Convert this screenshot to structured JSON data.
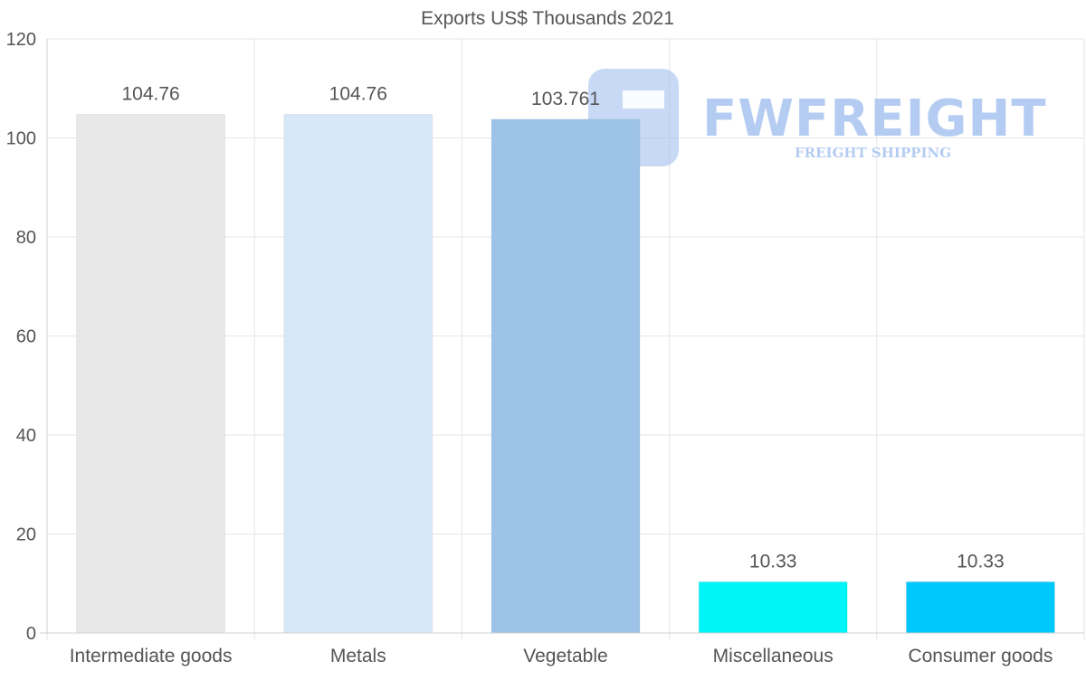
{
  "chart_data": {
    "type": "bar",
    "title": "Exports US$ Thousands 2021",
    "categories": [
      "Intermediate goods",
      "Metals",
      "Vegetable",
      "Miscellaneous",
      "Consumer goods"
    ],
    "values": [
      104.76,
      104.76,
      103.761,
      10.33,
      10.33
    ],
    "value_labels": [
      "104.76",
      "104.76",
      "103.761",
      "10.33",
      "10.33"
    ],
    "colors": [
      "#e8e8e8",
      "#d6e7f8",
      "#9dc4e8",
      "#00f5f8",
      "#00c8fc"
    ],
    "ylim": [
      0,
      120
    ],
    "yticks": [
      0,
      20,
      40,
      60,
      80,
      100,
      120
    ],
    "xlabel": "",
    "ylabel": "",
    "grid": true
  },
  "watermark": {
    "brand": "FWFREIGHT",
    "tagline": "FREIGHT SHIPPING",
    "color": "#a9c4f0"
  }
}
